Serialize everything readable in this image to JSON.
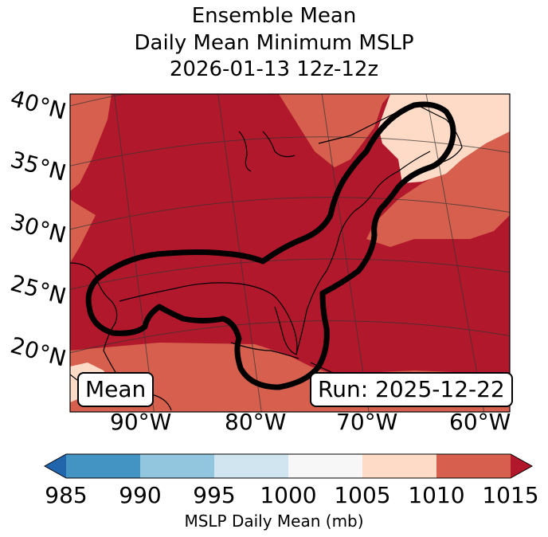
{
  "title": {
    "line1": "Ensemble Mean",
    "line2": "Daily Mean Minimum MSLP",
    "line3": "2026-01-13 12z-12z"
  },
  "map": {
    "lat_labels": [
      "40°N",
      "35°N",
      "30°N",
      "25°N",
      "20°N"
    ],
    "lon_labels": [
      "90°W",
      "80°W",
      "70°W",
      "60°W"
    ],
    "mean_label": "Mean",
    "run_label": "Run: 2025-12-22"
  },
  "colorbar": {
    "label": "MSLP Daily Mean (mb)",
    "ticks": [
      "985",
      "990",
      "995",
      "1000",
      "1005",
      "1010",
      "1015"
    ],
    "colors": [
      "#2166ac",
      "#4393c3",
      "#92c5de",
      "#d1e5f0",
      "#f7f7f7",
      "#fddbc7",
      "#d6604d",
      "#b2182b"
    ],
    "extend_low_color": "#2166ac",
    "extend_high_color": "#b2182b"
  },
  "palette": {
    "dark_red": "#b2182b",
    "mid_red": "#d6604d",
    "light_peach": "#fddbc7",
    "contour": "#000000"
  }
}
